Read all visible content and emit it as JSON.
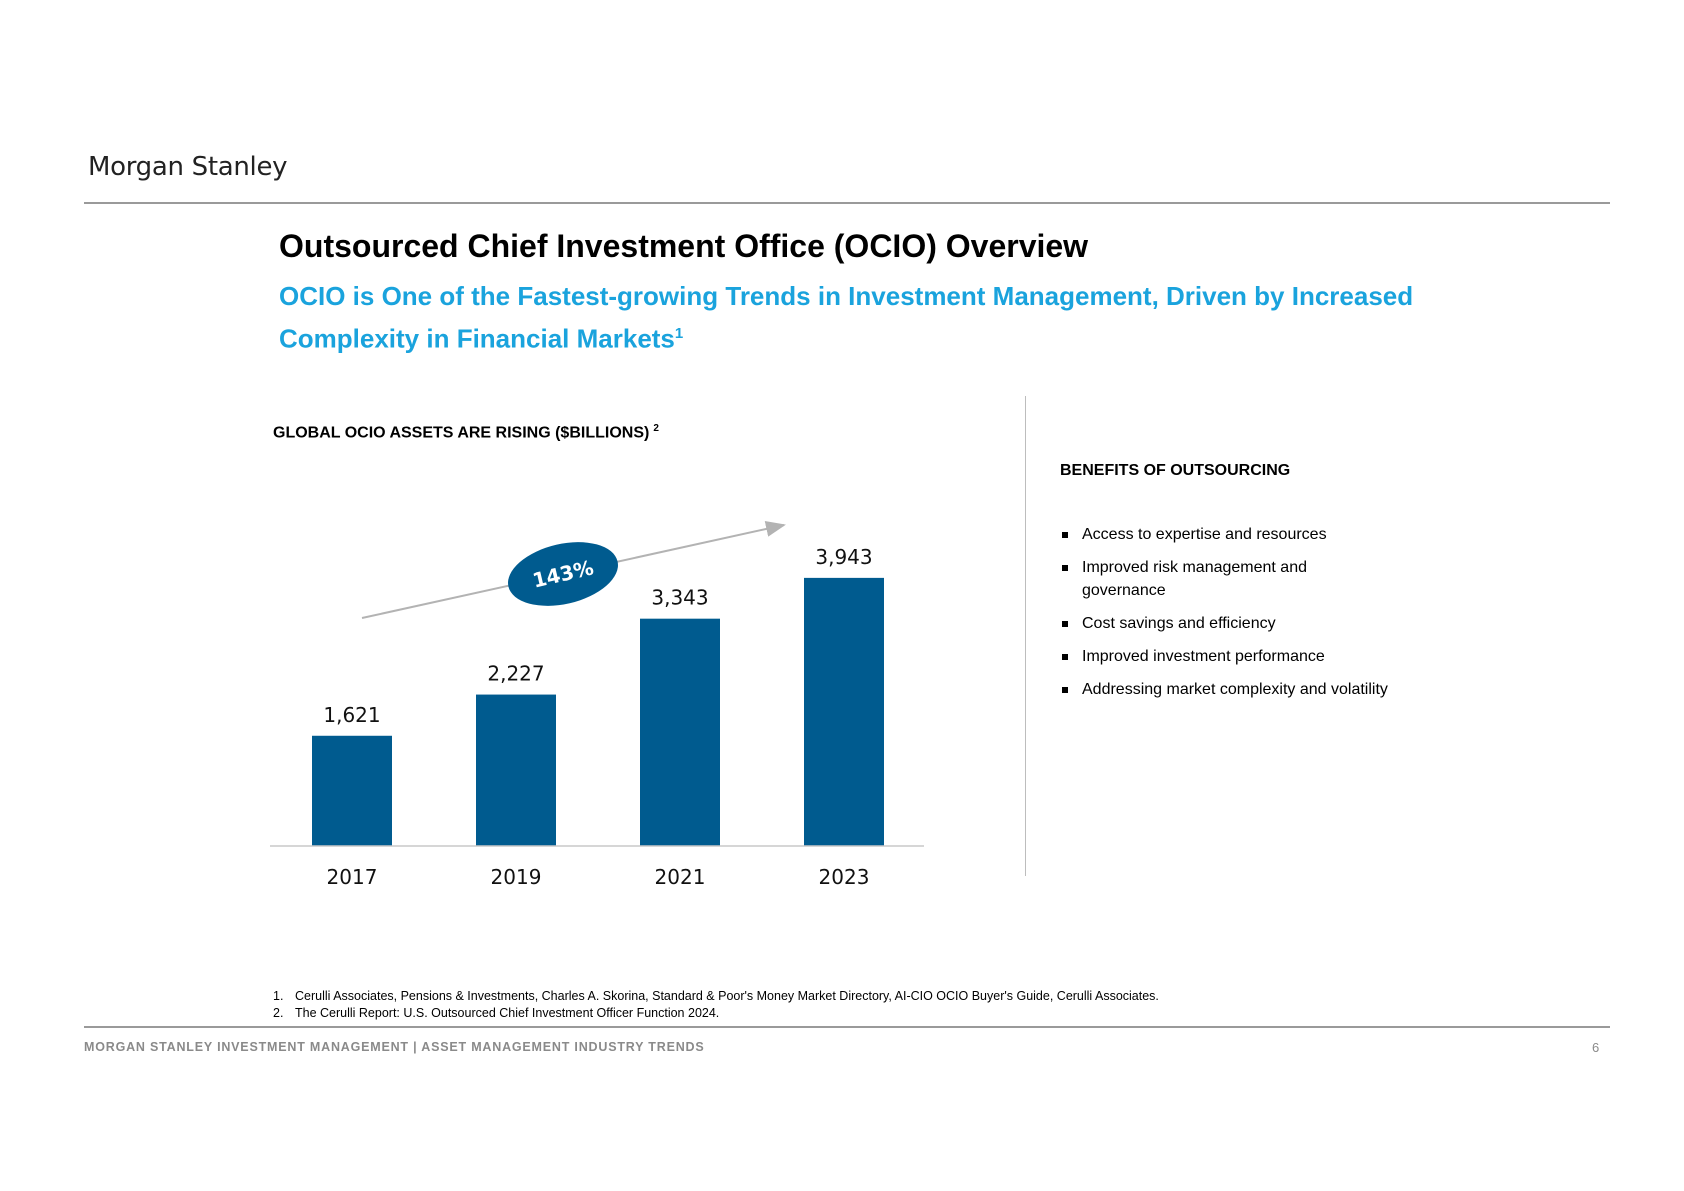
{
  "header": {
    "logo_text": "Morgan Stanley"
  },
  "title": "Outsourced Chief Investment Office (OCIO) Overview",
  "subtitle": {
    "text": "OCIO is One of the Fastest-growing Trends in Investment Management, Driven by Increased Complexity in Financial Markets",
    "footnote_marker": "1"
  },
  "chart_title": {
    "text": "GLOBAL OCIO ASSETS ARE RISING ($BILLIONS)",
    "footnote_marker": "2"
  },
  "chart_data": {
    "type": "bar",
    "title": "GLOBAL OCIO ASSETS ARE RISING ($BILLIONS)",
    "xlabel": "",
    "ylabel": "",
    "categories": [
      "2017",
      "2019",
      "2021",
      "2023"
    ],
    "values": [
      1621,
      2227,
      3343,
      3943
    ],
    "value_labels": [
      "1,621",
      "2,227",
      "3,343",
      "3,943"
    ],
    "ylim": [
      0,
      4500
    ],
    "grid": false,
    "legend": "none",
    "bar_color": "#005b8f",
    "annotation": {
      "text": "143%",
      "color": "#005b8f",
      "arrow_color": "#b3b3b3"
    }
  },
  "benefits": {
    "title": "BENEFITS OF OUTSOURCING",
    "items": [
      "Access to expertise and resources",
      "Improved risk management and governance",
      "Cost savings and efficiency",
      "Improved investment performance",
      "Addressing market complexity and volatility"
    ]
  },
  "footnotes": [
    {
      "num": "1.",
      "text": "Cerulli Associates, Pensions & Investments, Charles A. Skorina, Standard & Poor's Money Market Directory, AI-CIO OCIO Buyer's Guide, Cerulli Associates."
    },
    {
      "num": "2.",
      "text": "The Cerulli Report: U.S. Outsourced Chief Investment Officer Function 2024."
    }
  ],
  "footer": {
    "left_text": "MORGAN STANLEY INVESTMENT MANAGEMENT | ASSET MANAGEMENT INDUSTRY TRENDS",
    "page_number": "6"
  },
  "colors": {
    "accent_blue": "#1aa3dd",
    "bar_blue": "#005b8f",
    "rule_gray": "#9a9a9a"
  }
}
